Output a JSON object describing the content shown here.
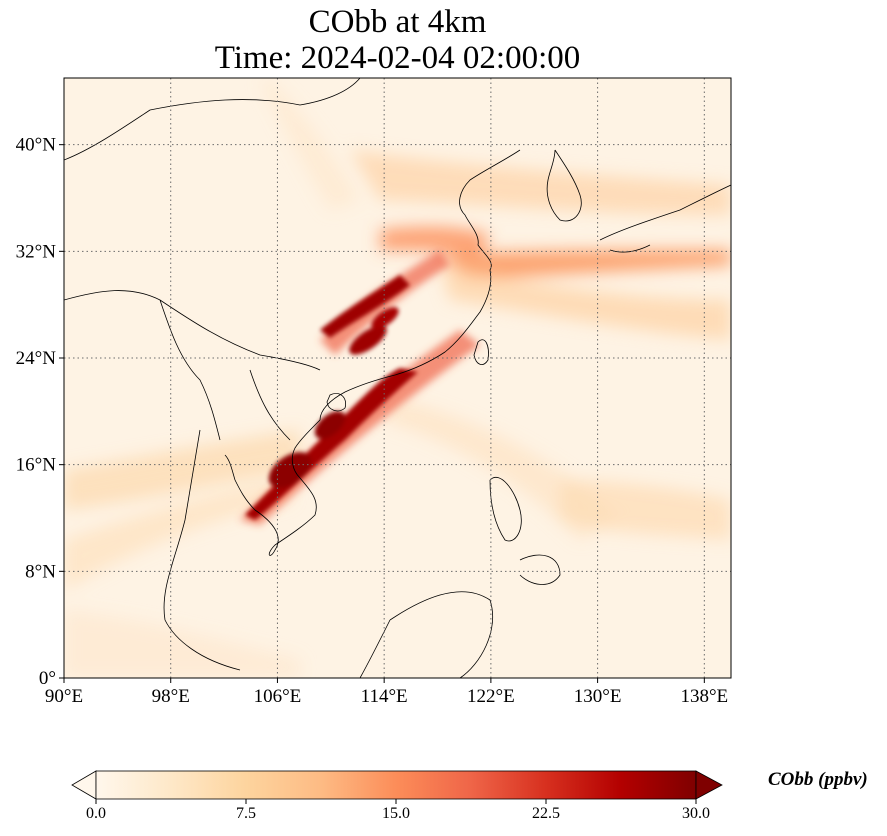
{
  "title": {
    "line1": "CObb at 4km",
    "line2": "Time: 2024-02-04 02:00:00"
  },
  "map": {
    "extent": {
      "lon": [
        90,
        140
      ],
      "lat": [
        0,
        45
      ]
    },
    "lon_ticks": [
      {
        "value": 90,
        "label": "90°E"
      },
      {
        "value": 98,
        "label": "98°E"
      },
      {
        "value": 106,
        "label": "106°E"
      },
      {
        "value": 114,
        "label": "114°E"
      },
      {
        "value": 122,
        "label": "122°E"
      },
      {
        "value": 130,
        "label": "130°E"
      },
      {
        "value": 138,
        "label": "138°E"
      }
    ],
    "lat_ticks": [
      {
        "value": 0,
        "label": "0°"
      },
      {
        "value": 8,
        "label": "8°N"
      },
      {
        "value": 16,
        "label": "16°N"
      },
      {
        "value": 24,
        "label": "24°N"
      },
      {
        "value": 32,
        "label": "32°N"
      },
      {
        "value": 40,
        "label": "40°N"
      }
    ],
    "gridlines": "dotted"
  },
  "colorbar": {
    "label": "CObb (ppbv)",
    "min": 0.0,
    "max": 30.0,
    "ticks": [
      "0.0",
      "7.5",
      "15.0",
      "22.5",
      "30.0"
    ],
    "extend": "both",
    "colormap": [
      "#fff7ec",
      "#fee8c8",
      "#fdd49e",
      "#fdbb84",
      "#fc8d59",
      "#ef6548",
      "#d7301f",
      "#b30000",
      "#7f0000"
    ]
  }
}
